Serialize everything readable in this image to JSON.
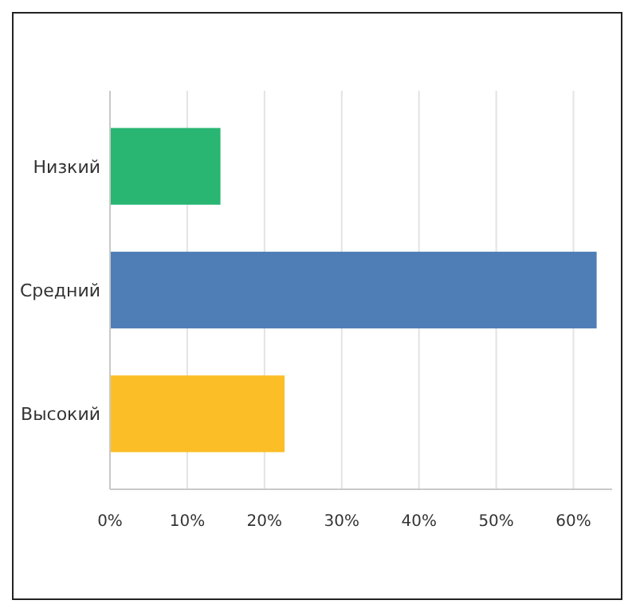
{
  "chart_data": {
    "type": "bar",
    "orientation": "horizontal",
    "categories": [
      "Низкий",
      "Средний",
      "Высокий"
    ],
    "values": [
      14.3,
      63.0,
      22.6
    ],
    "colors": [
      "#29b673",
      "#4f7eb6",
      "#fbbe26"
    ],
    "xlim": [
      0,
      65
    ],
    "xticks": [
      {
        "value": 0,
        "label": "0%"
      },
      {
        "value": 10,
        "label": "10%"
      },
      {
        "value": 20,
        "label": "20%"
      },
      {
        "value": 30,
        "label": "30%"
      },
      {
        "value": 40,
        "label": "40%"
      },
      {
        "value": 50,
        "label": "50%"
      },
      {
        "value": 60,
        "label": "60%"
      }
    ],
    "grid": "x"
  }
}
